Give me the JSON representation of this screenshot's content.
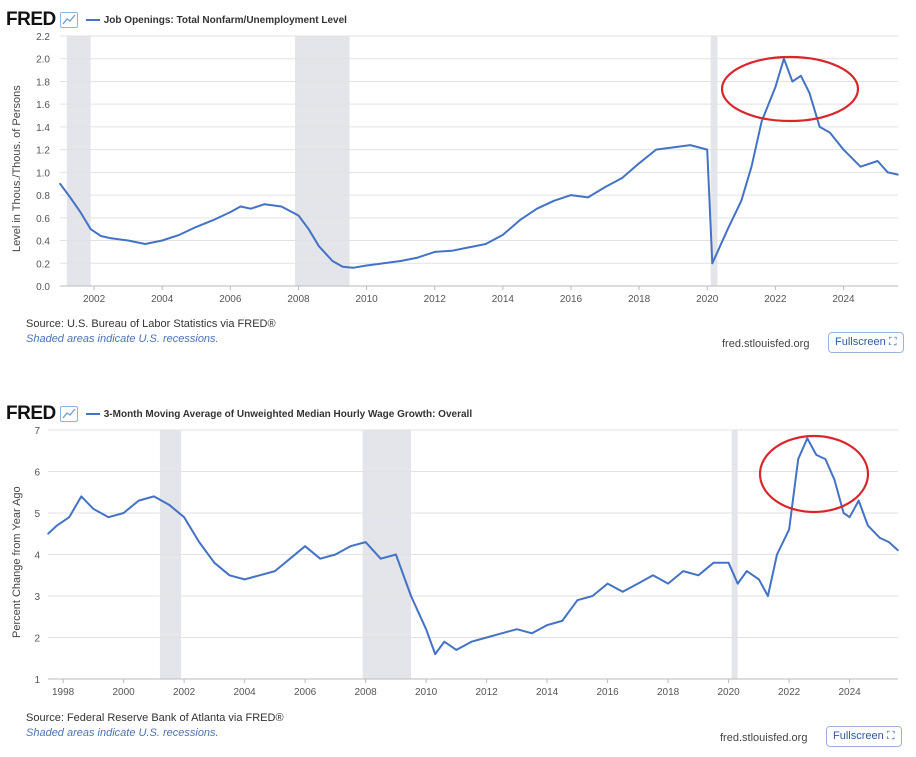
{
  "charts_ui": [
    {
      "logo": "FRED",
      "series_title": "Job Openings: Total Nonfarm/Unemployment Level",
      "source": "Source: U.S. Bureau of Labor Statistics via FRED®",
      "recession_note": "Shaded areas indicate U.S. recessions.",
      "site": "fred.stlouisfed.org",
      "fullscreen_label": "Fullscreen",
      "line_color": "#4472c4"
    },
    {
      "logo": "FRED",
      "series_title": "3-Month Moving Average of Unweighted Median Hourly Wage Growth: Overall",
      "source": "Source: Federal Reserve Bank of Atlanta via FRED®",
      "recession_note": "Shaded areas indicate U.S. recessions.",
      "site": "fred.stlouisfed.org",
      "fullscreen_label": "Fullscreen",
      "line_color": "#4472c4"
    }
  ],
  "chart_data": [
    {
      "type": "line",
      "title": "Job Openings: Total Nonfarm/Unemployment Level",
      "xlabel": "",
      "ylabel": "Level in Thous./Thous. of Persons",
      "xlim": [
        2001.0,
        2025.6
      ],
      "ylim": [
        0,
        2.2
      ],
      "xticks": [
        "2002",
        "2004",
        "2006",
        "2008",
        "2010",
        "2012",
        "2014",
        "2016",
        "2018",
        "2020",
        "2022",
        "2024"
      ],
      "yticks": [
        "0.0",
        "0.2",
        "0.4",
        "0.6",
        "0.8",
        "1.0",
        "1.2",
        "1.4",
        "1.6",
        "1.8",
        "2.0",
        "2.2"
      ],
      "grid": true,
      "recessions": [
        [
          2001.2,
          2001.9
        ],
        [
          2007.9,
          2009.5
        ],
        [
          2020.1,
          2020.3
        ]
      ],
      "annotation": {
        "type": "ellipse",
        "color": "#d9262b",
        "center": [
          2022.3,
          1.85
        ]
      },
      "x": [
        2001.0,
        2001.3,
        2001.6,
        2001.9,
        2002.2,
        2002.5,
        2003.0,
        2003.5,
        2004.0,
        2004.5,
        2005.0,
        2005.5,
        2006.0,
        2006.3,
        2006.6,
        2007.0,
        2007.5,
        2008.0,
        2008.3,
        2008.6,
        2009.0,
        2009.3,
        2009.6,
        2010.0,
        2010.5,
        2011.0,
        2011.5,
        2012.0,
        2012.5,
        2013.0,
        2013.5,
        2014.0,
        2014.5,
        2015.0,
        2015.5,
        2016.0,
        2016.5,
        2017.0,
        2017.5,
        2018.0,
        2018.5,
        2019.0,
        2019.5,
        2020.0,
        2020.15,
        2020.3,
        2020.6,
        2021.0,
        2021.3,
        2021.6,
        2022.0,
        2022.25,
        2022.5,
        2022.75,
        2023.0,
        2023.3,
        2023.6,
        2024.0,
        2024.5,
        2025.0,
        2025.3,
        2025.6
      ],
      "y": [
        0.9,
        0.78,
        0.65,
        0.5,
        0.44,
        0.42,
        0.4,
        0.37,
        0.4,
        0.45,
        0.52,
        0.58,
        0.65,
        0.7,
        0.68,
        0.72,
        0.7,
        0.62,
        0.5,
        0.35,
        0.22,
        0.17,
        0.16,
        0.18,
        0.2,
        0.22,
        0.25,
        0.3,
        0.31,
        0.34,
        0.37,
        0.45,
        0.58,
        0.68,
        0.75,
        0.8,
        0.78,
        0.87,
        0.95,
        1.08,
        1.2,
        1.22,
        1.24,
        1.2,
        0.2,
        0.3,
        0.5,
        0.75,
        1.05,
        1.45,
        1.75,
        2.0,
        1.8,
        1.85,
        1.7,
        1.4,
        1.35,
        1.2,
        1.05,
        1.1,
        1.0,
        0.98
      ]
    },
    {
      "type": "line",
      "title": "3-Month Moving Average of Unweighted Median Hourly Wage Growth: Overall",
      "xlabel": "",
      "ylabel": "Percent Change from Year Ago",
      "xlim": [
        1997.5,
        2025.6
      ],
      "ylim": [
        1,
        7
      ],
      "xticks": [
        "1998",
        "2000",
        "2002",
        "2004",
        "2006",
        "2008",
        "2010",
        "2012",
        "2014",
        "2016",
        "2018",
        "2020",
        "2022",
        "2024"
      ],
      "yticks": [
        "1",
        "2",
        "3",
        "4",
        "5",
        "6",
        "7"
      ],
      "grid": true,
      "recessions": [
        [
          2001.2,
          2001.9
        ],
        [
          2007.9,
          2009.5
        ],
        [
          2020.1,
          2020.3
        ]
      ],
      "annotation": {
        "type": "ellipse",
        "color": "#d9262b",
        "center": [
          2022.8,
          6.1
        ]
      },
      "x": [
        1997.5,
        1997.8,
        1998.2,
        1998.6,
        1999.0,
        1999.5,
        2000.0,
        2000.5,
        2001.0,
        2001.5,
        2002.0,
        2002.5,
        2003.0,
        2003.5,
        2004.0,
        2004.5,
        2005.0,
        2005.5,
        2006.0,
        2006.5,
        2007.0,
        2007.5,
        2008.0,
        2008.5,
        2009.0,
        2009.5,
        2010.0,
        2010.3,
        2010.6,
        2011.0,
        2011.5,
        2012.0,
        2012.5,
        2013.0,
        2013.5,
        2014.0,
        2014.5,
        2015.0,
        2015.5,
        2016.0,
        2016.5,
        2017.0,
        2017.5,
        2018.0,
        2018.5,
        2019.0,
        2019.5,
        2020.0,
        2020.3,
        2020.6,
        2021.0,
        2021.3,
        2021.6,
        2022.0,
        2022.3,
        2022.6,
        2022.9,
        2023.2,
        2023.5,
        2023.8,
        2024.0,
        2024.3,
        2024.6,
        2025.0,
        2025.3,
        2025.6
      ],
      "y": [
        4.5,
        4.7,
        4.9,
        5.4,
        5.1,
        4.9,
        5.0,
        5.3,
        5.4,
        5.2,
        4.9,
        4.3,
        3.8,
        3.5,
        3.4,
        3.5,
        3.6,
        3.9,
        4.2,
        3.9,
        4.0,
        4.2,
        4.3,
        3.9,
        4.0,
        3.0,
        2.2,
        1.6,
        1.9,
        1.7,
        1.9,
        2.0,
        2.1,
        2.2,
        2.1,
        2.3,
        2.4,
        2.9,
        3.0,
        3.3,
        3.1,
        3.3,
        3.5,
        3.3,
        3.6,
        3.5,
        3.8,
        3.8,
        3.3,
        3.6,
        3.4,
        3.0,
        4.0,
        4.6,
        6.3,
        6.8,
        6.4,
        6.3,
        5.8,
        5.0,
        4.9,
        5.3,
        4.7,
        4.4,
        4.3,
        4.1
      ]
    }
  ]
}
